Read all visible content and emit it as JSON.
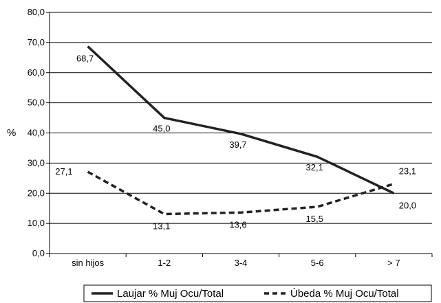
{
  "chart_data": {
    "type": "line",
    "ylabel": "%",
    "ylim": [
      0,
      80
    ],
    "yticks": [
      "0,0",
      "10,0",
      "20,0",
      "30,0",
      "40,0",
      "50,0",
      "60,0",
      "70,0",
      "80,0"
    ],
    "ytick_values": [
      0,
      10,
      20,
      30,
      40,
      50,
      60,
      70,
      80
    ],
    "categories": [
      "sin hijos",
      "1-2",
      "3-4",
      "5-6",
      "> 7"
    ],
    "grid": true,
    "legend_position": "bottom",
    "series": [
      {
        "name": "Laujar % Muj Ocu/Total",
        "style": "solid",
        "color": "#222222",
        "values": [
          68.7,
          45.0,
          39.7,
          32.1,
          20.0
        ],
        "labels": [
          "68,7",
          "45,0",
          "39,7",
          "32,1",
          "20,0"
        ]
      },
      {
        "name": "Úbeda % Muj Ocu/Total",
        "style": "dashed",
        "color": "#222222",
        "values": [
          27.1,
          13.1,
          13.6,
          15.5,
          23.1
        ],
        "labels": [
          "27,1",
          "13,1",
          "13,6",
          "15,5",
          "23,1"
        ]
      }
    ]
  }
}
